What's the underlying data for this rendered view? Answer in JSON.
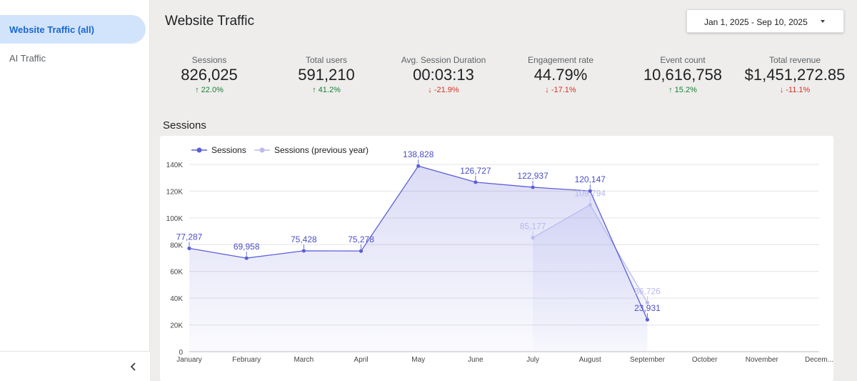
{
  "sidebar": {
    "items": [
      {
        "label": "Website Traffic (all)",
        "active": true
      },
      {
        "label": "AI Traffic",
        "active": false
      }
    ],
    "collapse_icon": "chevron-left-icon",
    "collapse_glyph": "‹"
  },
  "header": {
    "title": "Website Traffic",
    "date_range": "Jan 1, 2025 - Sep 10, 2025"
  },
  "kpis": [
    {
      "label": "Sessions",
      "value": "826,025",
      "delta": "22.0%",
      "direction": "up",
      "arrow": "↑"
    },
    {
      "label": "Total users",
      "value": "591,210",
      "delta": "41.2%",
      "direction": "up",
      "arrow": "↑"
    },
    {
      "label": "Avg. Session Duration",
      "value": "00:03:13",
      "delta": "-21.9%",
      "direction": "down",
      "arrow": "↓"
    },
    {
      "label": "Engagement rate",
      "value": "44.79%",
      "delta": "-17.1%",
      "direction": "down",
      "arrow": "↓"
    },
    {
      "label": "Event count",
      "value": "10,616,758",
      "delta": "15.2%",
      "direction": "up",
      "arrow": "↑"
    },
    {
      "label": "Total revenue",
      "value": "$1,451,272.85",
      "delta": "-11.1%",
      "direction": "down",
      "arrow": "↓"
    }
  ],
  "section_title": "Sessions",
  "colors": {
    "series_current": "#5c5fd6",
    "series_previous": "#b9bbf0",
    "up": "#188038",
    "down": "#d93025"
  },
  "chart_data": {
    "type": "line",
    "title": "Sessions",
    "categories": [
      "January",
      "February",
      "March",
      "April",
      "May",
      "June",
      "July",
      "August",
      "September",
      "October",
      "November",
      "Decem..."
    ],
    "ylim": [
      0,
      140000
    ],
    "yticks": [
      0,
      20000,
      40000,
      60000,
      80000,
      100000,
      120000,
      140000
    ],
    "ytick_labels": [
      "0",
      "20K",
      "40K",
      "60K",
      "80K",
      "100K",
      "120K",
      "140K"
    ],
    "grid": true,
    "legend_position": "top-left",
    "series": [
      {
        "name": "Sessions",
        "values": [
          77287,
          69958,
          75428,
          75278,
          138828,
          126727,
          122937,
          120147,
          23931,
          null,
          null,
          null
        ],
        "labels": [
          "77,287",
          "69,958",
          "75,428",
          "75,278",
          "138,828",
          "126,727",
          "122,937",
          "120,147",
          "23,931",
          null,
          null,
          null
        ]
      },
      {
        "name": "Sessions (previous year)",
        "values": [
          null,
          null,
          null,
          null,
          null,
          null,
          85177,
          109794,
          36726,
          null,
          null,
          null
        ],
        "labels": [
          null,
          null,
          null,
          null,
          null,
          null,
          "85,177",
          "109,794",
          "36,726",
          null,
          null,
          null
        ]
      }
    ]
  }
}
